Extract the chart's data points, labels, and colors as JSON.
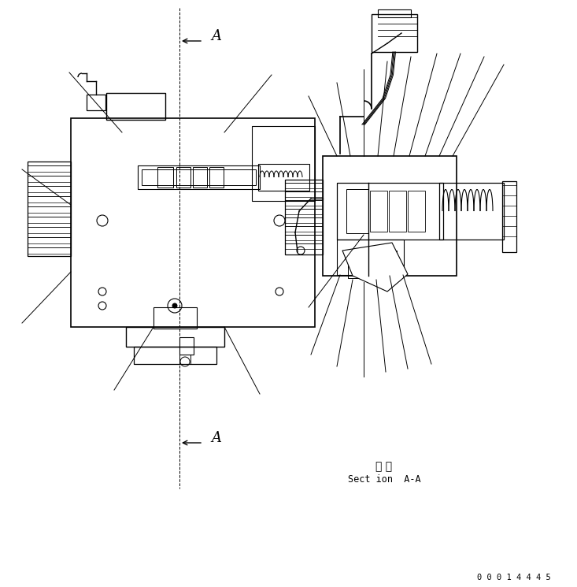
{
  "bg_color": "#ffffff",
  "line_color": "#000000",
  "text_color": "#000000",
  "section_label_ja": "断 面",
  "section_label_en": "Sect ion  A-A",
  "part_number": "0 0 0 1 4 4 4 5",
  "arrow_label": "A",
  "figsize": [
    7.33,
    7.45
  ],
  "dpi": 100
}
